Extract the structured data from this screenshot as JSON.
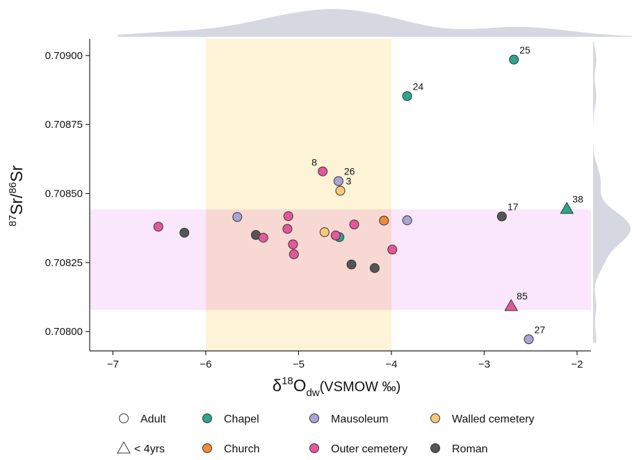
{
  "chart_data": {
    "type": "scatter",
    "xlabel": {
      "main": "δ",
      "sup": "18",
      "mid": "O",
      "sub": "dw",
      "tail": "(VSMOW ‰)"
    },
    "ylabel": {
      "sup1": "87",
      "part1": "Sr/",
      "sup2": "86",
      "part2": "Sr"
    },
    "xlim": [
      -7.25,
      -1.85
    ],
    "ylim": [
      0.70793,
      0.70906
    ],
    "x_ticks": [
      -7,
      -6,
      -5,
      -4,
      -3,
      -2
    ],
    "x_tick_labels": [
      "−7",
      "−6",
      "−5",
      "−4",
      "−3",
      "−2"
    ],
    "y_ticks": [
      0.709,
      0.70875,
      0.7085,
      0.70825,
      0.708
    ],
    "y_tick_labels": [
      "0.70900",
      "0.70875",
      "0.70850",
      "0.70825",
      "0.70800"
    ],
    "bands": [
      {
        "axis": "x",
        "from": -6.0,
        "to": -4.0,
        "color": "#FDF1CF"
      },
      {
        "axis": "y",
        "from": 0.708078,
        "to": 0.708442,
        "color": "#F9E3FA"
      }
    ],
    "colors": {
      "Chapel": "#2CA58D",
      "Church": "#F08A3C",
      "Mausoleum": "#A9A6D6",
      "Outer cemetery": "#E4589A",
      "Walled cemetery": "#F6C97A",
      "Roman": "#555555"
    },
    "points": [
      {
        "x": -2.68,
        "y": 0.708985,
        "site": "Chapel",
        "shape": "circle",
        "label": "25"
      },
      {
        "x": -3.83,
        "y": 0.708853,
        "site": "Chapel",
        "shape": "circle",
        "label": "24"
      },
      {
        "x": -4.74,
        "y": 0.70858,
        "site": "Outer cemetery",
        "shape": "circle",
        "label": "8"
      },
      {
        "x": -4.57,
        "y": 0.708545,
        "site": "Mausoleum",
        "shape": "circle",
        "label": "26"
      },
      {
        "x": -4.55,
        "y": 0.70851,
        "site": "Walled cemetery",
        "shape": "circle",
        "label": "3"
      },
      {
        "x": -2.11,
        "y": 0.708445,
        "site": "Chapel",
        "shape": "triangle",
        "label": "38"
      },
      {
        "x": -2.81,
        "y": 0.708417,
        "site": "Roman",
        "shape": "circle",
        "label": "17"
      },
      {
        "x": -2.71,
        "y": 0.708093,
        "site": "Outer cemetery",
        "shape": "triangle",
        "label": "85"
      },
      {
        "x": -2.52,
        "y": 0.707972,
        "site": "Mausoleum",
        "shape": "circle",
        "label": "27"
      },
      {
        "x": -6.51,
        "y": 0.70838,
        "site": "Outer cemetery",
        "shape": "circle"
      },
      {
        "x": -6.23,
        "y": 0.708358,
        "site": "Roman",
        "shape": "circle"
      },
      {
        "x": -5.66,
        "y": 0.708415,
        "site": "Mausoleum",
        "shape": "circle"
      },
      {
        "x": -5.46,
        "y": 0.70835,
        "site": "Roman",
        "shape": "circle"
      },
      {
        "x": -5.38,
        "y": 0.70834,
        "site": "Outer cemetery",
        "shape": "circle"
      },
      {
        "x": -5.11,
        "y": 0.708418,
        "site": "Outer cemetery",
        "shape": "circle"
      },
      {
        "x": -5.12,
        "y": 0.708372,
        "site": "Outer cemetery",
        "shape": "circle"
      },
      {
        "x": -5.06,
        "y": 0.708316,
        "site": "Outer cemetery",
        "shape": "circle"
      },
      {
        "x": -5.05,
        "y": 0.70828,
        "site": "Outer cemetery",
        "shape": "circle"
      },
      {
        "x": -4.72,
        "y": 0.70836,
        "site": "Walled cemetery",
        "shape": "circle"
      },
      {
        "x": -4.56,
        "y": 0.708342,
        "site": "Chapel",
        "shape": "circle"
      },
      {
        "x": -4.6,
        "y": 0.708348,
        "site": "Outer cemetery",
        "shape": "circle"
      },
      {
        "x": -4.4,
        "y": 0.708388,
        "site": "Outer cemetery",
        "shape": "circle"
      },
      {
        "x": -4.43,
        "y": 0.708243,
        "site": "Roman",
        "shape": "circle"
      },
      {
        "x": -4.18,
        "y": 0.70823,
        "site": "Roman",
        "shape": "circle"
      },
      {
        "x": -4.08,
        "y": 0.708402,
        "site": "Church",
        "shape": "circle"
      },
      {
        "x": -3.99,
        "y": 0.708297,
        "site": "Outer cemetery",
        "shape": "circle"
      },
      {
        "x": -3.83,
        "y": 0.708403,
        "site": "Mausoleum",
        "shape": "circle"
      }
    ],
    "legend": {
      "placement": "bottom",
      "entries": [
        {
          "label": "Adult",
          "marker": "circle-open"
        },
        {
          "label": "Chapel",
          "marker": "circle",
          "color": "#2CA58D"
        },
        {
          "label": "Mausoleum",
          "marker": "circle",
          "color": "#A9A6D6"
        },
        {
          "label": "Walled cemetery",
          "marker": "circle",
          "color": "#F6C97A"
        },
        {
          "label": "< 4yrs",
          "marker": "triangle-open"
        },
        {
          "label": "Church",
          "marker": "circle",
          "color": "#F08A3C"
        },
        {
          "label": "Outer cemetery",
          "marker": "circle",
          "color": "#E4589A"
        },
        {
          "label": "Roman",
          "marker": "circle",
          "color": "#555555"
        }
      ]
    },
    "marginal_densities": {
      "color": "#D5D8E0"
    },
    "grid": false
  }
}
